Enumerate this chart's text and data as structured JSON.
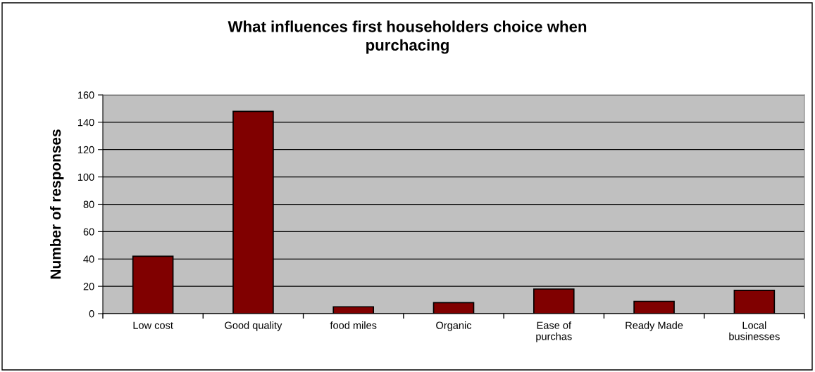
{
  "chart_data": {
    "type": "bar",
    "title": "What influences first householders choice when\npurchacing",
    "ylabel": "Number of responses",
    "categories": [
      "Low cost",
      "Good quality",
      "food miles",
      "Organic",
      "Ease of\npurchas",
      "Ready Made",
      "Local\nbusinesses"
    ],
    "values": [
      42,
      148,
      5,
      8,
      18,
      9,
      17
    ],
    "color": "#800000",
    "ylim": [
      0,
      160
    ],
    "yticks": [
      0,
      20,
      40,
      60,
      80,
      100,
      120,
      140,
      160
    ],
    "grid": "y",
    "legend": false
  }
}
